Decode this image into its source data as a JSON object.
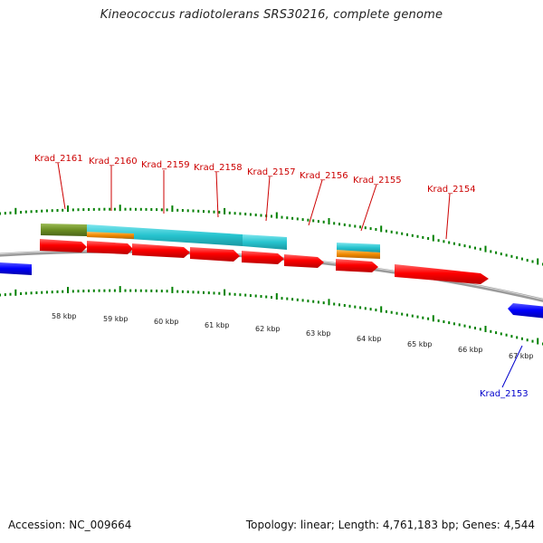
{
  "title": "Kineococcus radiotolerans SRS30216, complete genome",
  "footer": {
    "accession": "Accession: NC_009664",
    "stats": "Topology: linear; Length: 4,761,183 bp; Genes: 4,544"
  },
  "colors": {
    "forward_gene": "#ff0000",
    "reverse_gene": "#0000ff",
    "cds_cyan": "#27c4cf",
    "cds_orange": "#f08a00",
    "cds_olive": "#6b8e23",
    "backbone": "#808080",
    "tick_marks": "#008000",
    "label_forward": "#cc0000",
    "label_reverse": "#0000cc"
  },
  "scale_labels": [
    "58 kbp",
    "59 kbp",
    "60 kbp",
    "61 kbp",
    "62 kbp",
    "63 kbp",
    "64 kbp",
    "65 kbp",
    "66 kbp",
    "67 kbp"
  ],
  "gene_labels": [
    {
      "name": "Krad_2161",
      "strand": "forward"
    },
    {
      "name": "Krad_2160",
      "strand": "forward"
    },
    {
      "name": "Krad_2159",
      "strand": "forward"
    },
    {
      "name": "Krad_2158",
      "strand": "forward"
    },
    {
      "name": "Krad_2157",
      "strand": "forward"
    },
    {
      "name": "Krad_2156",
      "strand": "forward"
    },
    {
      "name": "Krad_2155",
      "strand": "forward"
    },
    {
      "name": "Krad_2154",
      "strand": "forward"
    },
    {
      "name": "Krad_2153",
      "strand": "reverse"
    }
  ]
}
